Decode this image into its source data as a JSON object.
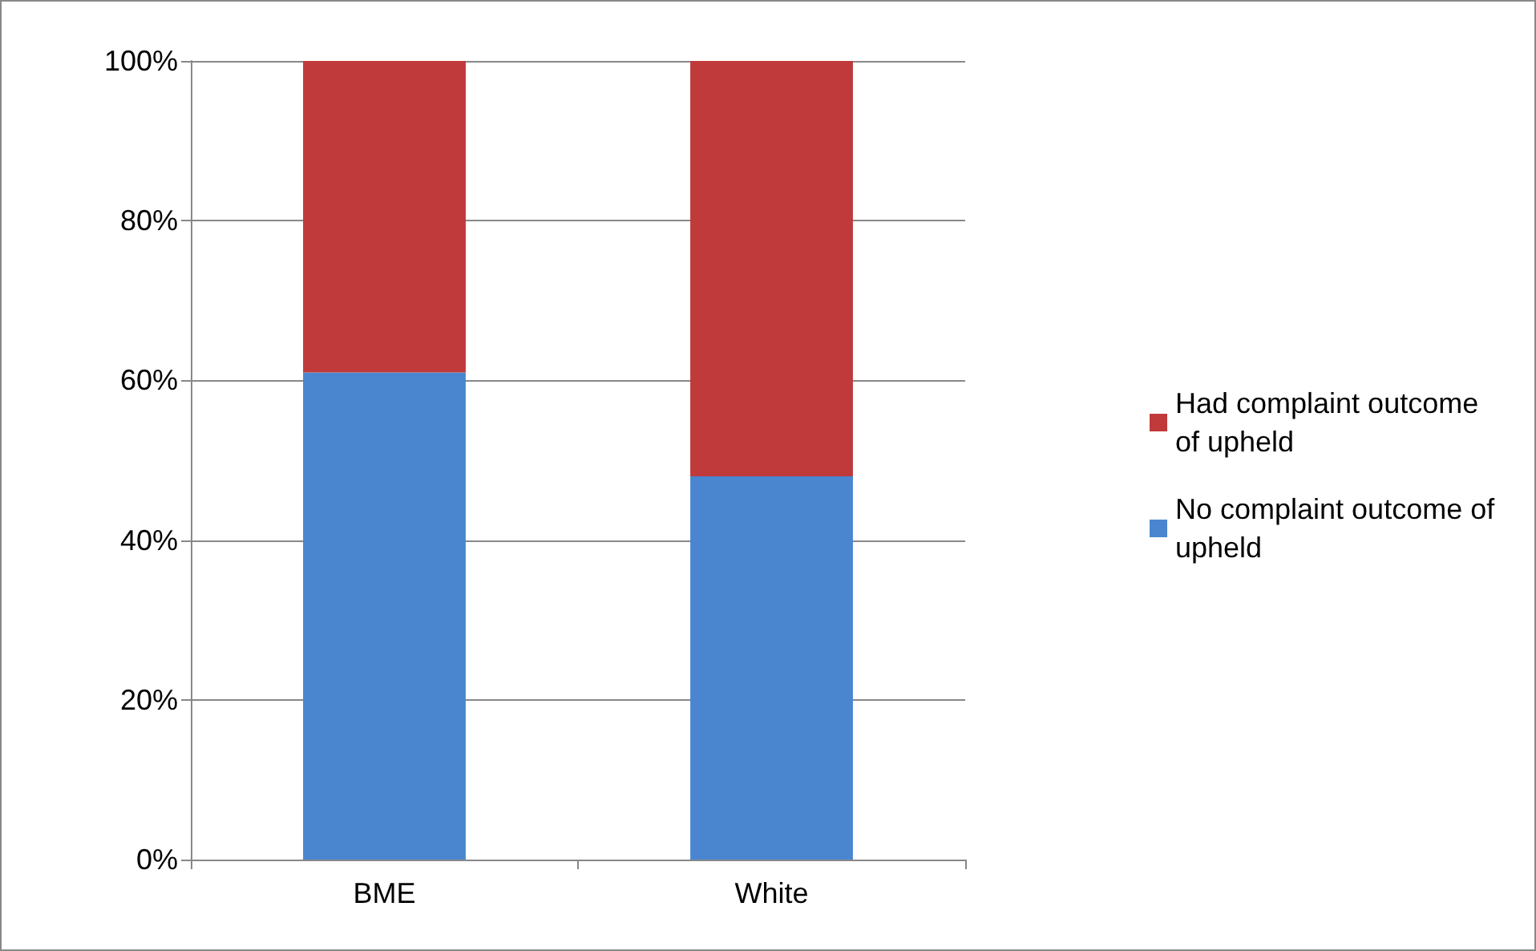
{
  "chart_data": {
    "type": "bar",
    "stacked": true,
    "categories": [
      "BME",
      "White"
    ],
    "series": [
      {
        "name": "No complaint outcome of upheld",
        "color": "#4a86d0",
        "values": [
          61,
          48
        ]
      },
      {
        "name": "Had complaint outcome of upheld",
        "color": "#c0393b",
        "values": [
          39,
          52
        ]
      }
    ],
    "ylim": [
      0,
      100
    ],
    "yticks": [
      {
        "value": 0,
        "label": "0%"
      },
      {
        "value": 20,
        "label": "20%"
      },
      {
        "value": 40,
        "label": "40%"
      },
      {
        "value": 60,
        "label": "60%"
      },
      {
        "value": 80,
        "label": "80%"
      },
      {
        "value": 100,
        "label": "100%"
      }
    ],
    "grid": "y",
    "legend": "right"
  }
}
